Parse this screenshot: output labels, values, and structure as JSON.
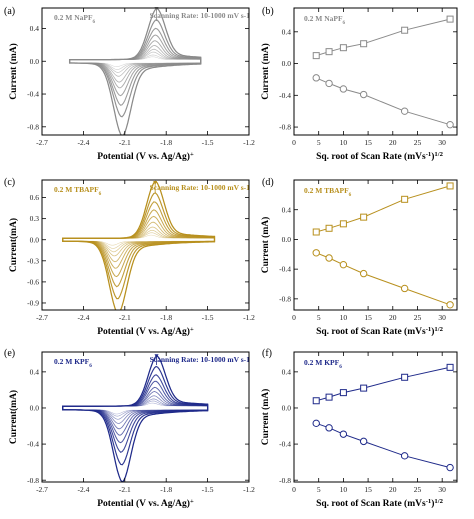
{
  "chart_data": [
    {
      "id": "a",
      "type": "line",
      "panel_label": "(a)",
      "color": "#8a8a8a",
      "electrolyte": "0.2 M NaPF6",
      "annotation": "Scanning Rate: 10-1000 mV s-1",
      "xlabel": "Potential (V vs. Ag/Ag+)",
      "ylabel": "Current (mA)",
      "xlim": [
        -2.7,
        -1.2
      ],
      "ylim": [
        -0.9,
        0.65
      ],
      "xticks": [
        -2.7,
        -2.4,
        -2.1,
        -1.8,
        -1.5,
        -1.2
      ],
      "yticks": [
        0.4,
        0.0,
        -0.4,
        -0.8
      ],
      "cv": {
        "x_start": -2.5,
        "x_end": -1.55,
        "epc": -2.16,
        "epa": -1.87,
        "width": 0.075,
        "ipc": [
          0.04,
          0.07,
          0.1,
          0.14,
          0.2,
          0.26,
          0.34,
          0.44,
          0.56,
          0.76
        ],
        "ipa": [
          0.03,
          0.05,
          0.08,
          0.11,
          0.15,
          0.2,
          0.26,
          0.33,
          0.42,
          0.54
        ]
      }
    },
    {
      "id": "b",
      "type": "scatter",
      "panel_label": "(b)",
      "color": "#8a8a8a",
      "electrolyte": "0.2 M NaPF6",
      "xlabel": "Sq. root of Scan Rate (mVs-1)1/2",
      "ylabel": "Current (mA)",
      "xlim": [
        0,
        33
      ],
      "ylim": [
        -0.9,
        0.7
      ],
      "xticks": [
        0,
        5,
        10,
        15,
        20,
        25,
        30
      ],
      "yticks": [
        0.4,
        0.0,
        -0.4,
        -0.8
      ],
      "x": [
        4.5,
        7.1,
        10,
        14.1,
        22.4,
        31.6
      ],
      "series": [
        {
          "marker": "square",
          "values": [
            0.1,
            0.15,
            0.2,
            0.25,
            0.42,
            0.56
          ]
        },
        {
          "marker": "circle",
          "values": [
            -0.18,
            -0.25,
            -0.32,
            -0.39,
            -0.6,
            -0.77
          ]
        }
      ]
    },
    {
      "id": "c",
      "type": "line",
      "panel_label": "(c)",
      "color": "#b8901e",
      "electrolyte": "0.2 M TBAPF6",
      "annotation": "Scanning Rate: 10-1000 mV s-1",
      "xlabel": "Potential (V vs. Ag/Ag+)",
      "ylabel": "Current(mA)",
      "xlim": [
        -2.7,
        -1.2
      ],
      "ylim": [
        -1.0,
        0.85
      ],
      "xticks": [
        -2.7,
        -2.4,
        -2.1,
        -1.8,
        -1.5,
        -1.2
      ],
      "yticks": [
        0.6,
        0.3,
        0.0,
        -0.3,
        -0.6,
        -0.9
      ],
      "cv": {
        "x_start": -2.55,
        "x_end": -1.45,
        "epc": -2.19,
        "epa": -1.88,
        "width": 0.075,
        "ipc": [
          0.05,
          0.09,
          0.13,
          0.18,
          0.25,
          0.33,
          0.43,
          0.55,
          0.7,
          0.88
        ],
        "ipa": [
          0.04,
          0.07,
          0.1,
          0.14,
          0.2,
          0.27,
          0.35,
          0.45,
          0.56,
          0.7
        ]
      }
    },
    {
      "id": "d",
      "type": "scatter",
      "panel_label": "(d)",
      "color": "#b8901e",
      "electrolyte": "0.2 M TBAPF6",
      "xlabel": "Sq. root of Scan Rate (mVs-1)1/2",
      "ylabel": "Current (mA)",
      "xlim": [
        0,
        33
      ],
      "ylim": [
        -0.95,
        0.8
      ],
      "xticks": [
        0,
        5,
        10,
        15,
        20,
        25,
        30
      ],
      "yticks": [
        0.4,
        0.0,
        -0.4,
        -0.8
      ],
      "x": [
        4.5,
        7.1,
        10,
        14.1,
        22.4,
        31.6
      ],
      "series": [
        {
          "marker": "square",
          "values": [
            0.1,
            0.15,
            0.21,
            0.3,
            0.54,
            0.72
          ]
        },
        {
          "marker": "circle",
          "values": [
            -0.18,
            -0.25,
            -0.34,
            -0.46,
            -0.66,
            -0.88
          ]
        }
      ]
    },
    {
      "id": "e",
      "type": "line",
      "panel_label": "(e)",
      "color": "#1f2a8a",
      "electrolyte": "0.2 M KPF6",
      "annotation": "Scanning Rate: 10-1000 mV s-1",
      "xlabel": "Potential (V vs. Ag/Ag+)",
      "ylabel": "Current(mA)",
      "xlim": [
        -2.7,
        -1.2
      ],
      "ylim": [
        -0.82,
        0.62
      ],
      "xticks": [
        -2.7,
        -2.4,
        -2.1,
        -1.8,
        -1.5,
        -1.2
      ],
      "yticks": [
        0.4,
        0.0,
        -0.4,
        -0.8
      ],
      "cv": {
        "x_start": -2.55,
        "x_end": -1.5,
        "epc": -2.16,
        "epa": -1.87,
        "width": 0.075,
        "ipc": [
          0.04,
          0.06,
          0.09,
          0.13,
          0.18,
          0.24,
          0.31,
          0.4,
          0.52,
          0.68
        ],
        "ipa": [
          0.03,
          0.05,
          0.07,
          0.1,
          0.14,
          0.18,
          0.24,
          0.3,
          0.38,
          0.48
        ]
      }
    },
    {
      "id": "f",
      "type": "scatter",
      "panel_label": "(f)",
      "color": "#1f2a8a",
      "electrolyte": "0.2 M KPF6",
      "xlabel": "Sq. root of Scan Rate (mVs-1)1/2",
      "ylabel": "Current (mA)",
      "xlim": [
        0,
        33
      ],
      "ylim": [
        -0.82,
        0.62
      ],
      "xticks": [
        0,
        5,
        10,
        15,
        20,
        25,
        30
      ],
      "yticks": [
        0.4,
        0.0,
        -0.4,
        -0.8
      ],
      "x": [
        4.5,
        7.1,
        10,
        14.1,
        22.4,
        31.6
      ],
      "series": [
        {
          "marker": "square",
          "values": [
            0.08,
            0.12,
            0.17,
            0.22,
            0.34,
            0.45
          ]
        },
        {
          "marker": "circle",
          "values": [
            -0.17,
            -0.22,
            -0.29,
            -0.37,
            -0.53,
            -0.66
          ]
        }
      ]
    }
  ]
}
